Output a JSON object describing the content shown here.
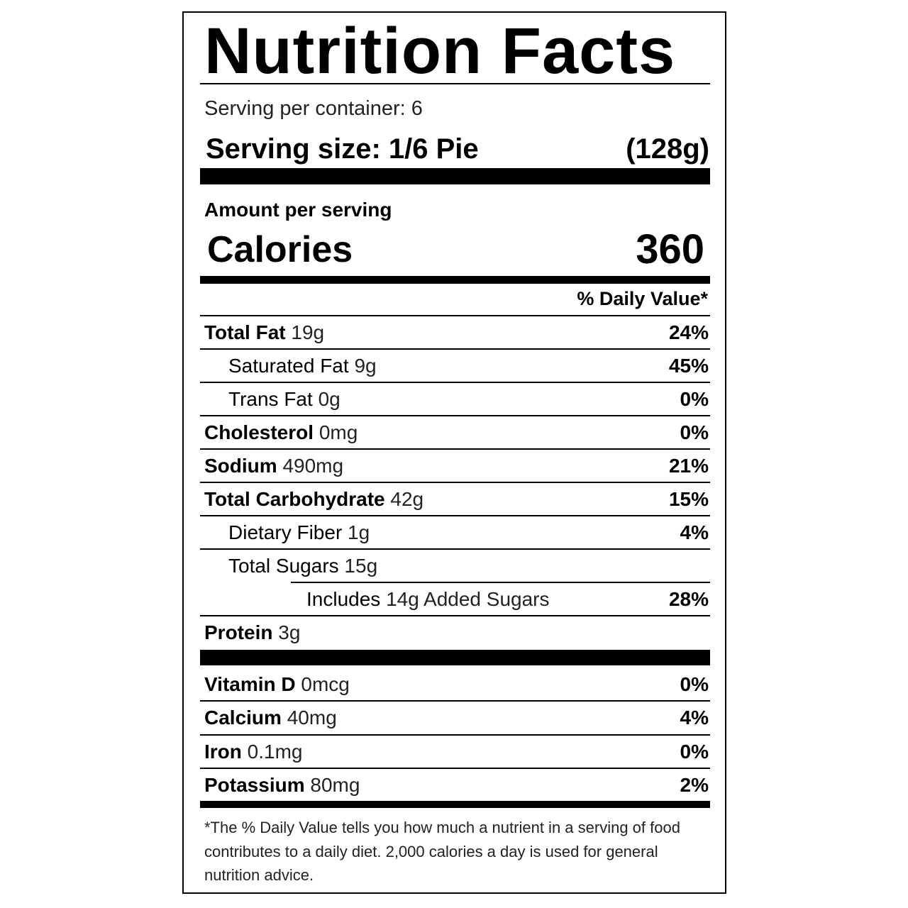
{
  "title": "Nutrition Facts",
  "servings": "Serving per container: 6",
  "serving_size": {
    "label": "Serving size: 1/6 Pie",
    "amount": "(128g)"
  },
  "amount_per_serving": "Amount per serving",
  "calories": {
    "label": "Calories",
    "value": "360"
  },
  "daily_value_header": "% Daily Value*",
  "nutrients": [
    {
      "name": "Total Fat",
      "amount": "19g",
      "dv": "24%",
      "indent": 0
    },
    {
      "name": "Saturated Fat",
      "amount": "9g",
      "dv": "45%",
      "indent": 1
    },
    {
      "name": "Trans Fat",
      "amount": "0g",
      "dv": "0%",
      "indent": 1
    },
    {
      "name": "Cholesterol",
      "amount": "0mg",
      "dv": "0%",
      "indent": 0
    },
    {
      "name": "Sodium",
      "amount": "490mg",
      "dv": "21%",
      "indent": 0
    },
    {
      "name": "Total Carbohydrate",
      "amount": "42g",
      "dv": "15%",
      "indent": 0
    },
    {
      "name": "Dietary Fiber",
      "amount": "1g",
      "dv": "4%",
      "indent": 1
    },
    {
      "name": "Total Sugars",
      "amount": "15g",
      "dv": null,
      "indent": 1
    },
    {
      "name": "Includes",
      "amount": "14g Added Sugars",
      "dv": "28%",
      "indent": 2
    },
    {
      "name": "Protein",
      "amount": "3g",
      "dv": null,
      "indent": 0
    }
  ],
  "minerals": [
    {
      "name": "Vitamin D",
      "amount": "0mcg",
      "dv": "0%"
    },
    {
      "name": "Calcium",
      "amount": "40mg",
      "dv": "4%"
    },
    {
      "name": "Iron",
      "amount": "0.1mg",
      "dv": "0%"
    },
    {
      "name": "Potassium",
      "amount": "80mg",
      "dv": "2%"
    }
  ],
  "footnote": "*The % Daily Value tells you how much a nutrient in a serving of food contributes to a daily diet. 2,000 calories a day is used for general nutrition advice."
}
